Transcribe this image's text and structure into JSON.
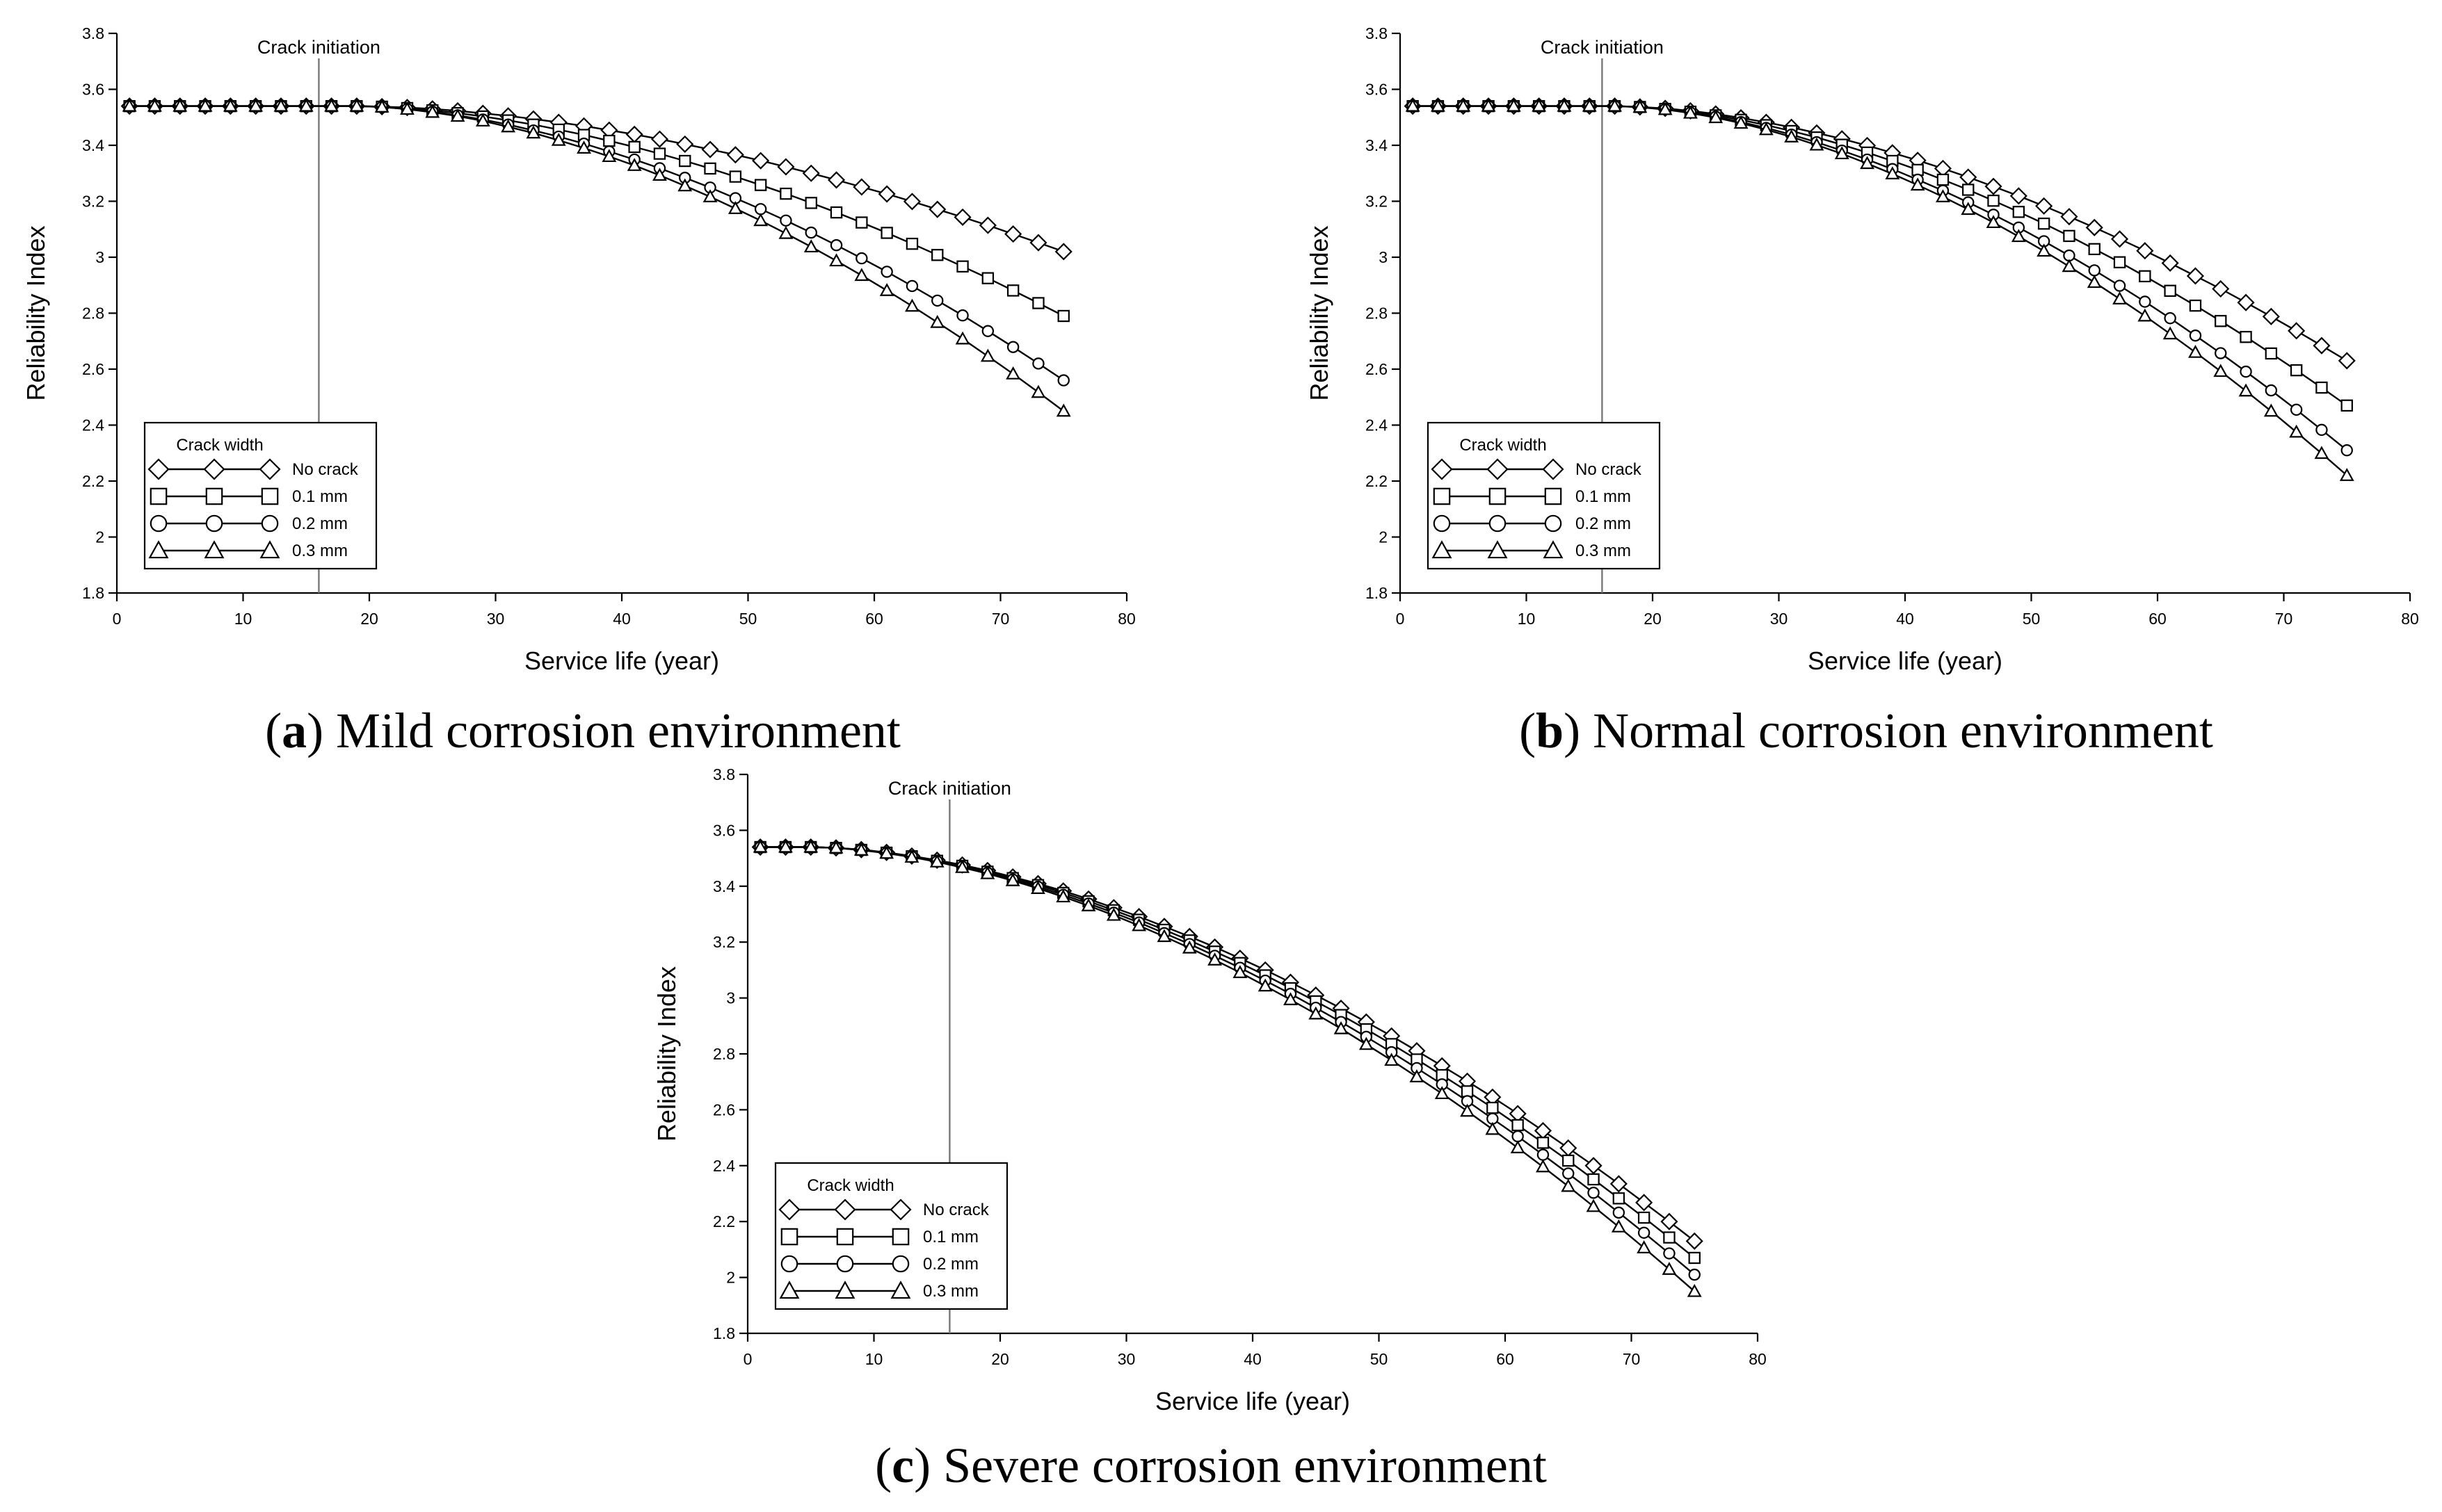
{
  "colors": {
    "line": "#000000",
    "marker_fill": "#ffffff",
    "crack_line": "#777777"
  },
  "chart_data": [
    {
      "id": "a",
      "type": "line",
      "caption_letter": "a",
      "caption_text": "Mild corrosion environment",
      "xlabel": "Service life (year)",
      "ylabel": "Reliability Index",
      "xlim": [
        0,
        80
      ],
      "ylim": [
        1.8,
        3.8
      ],
      "xticks": [
        0,
        10,
        20,
        30,
        40,
        50,
        60,
        70,
        80
      ],
      "yticks": [
        1.8,
        2,
        2.2,
        2.4,
        2.6,
        2.8,
        3,
        3.2,
        3.4,
        3.6,
        3.8
      ],
      "ytick_labels": [
        "1.8",
        "2",
        "2.2",
        "2.4",
        "2.6",
        "2.8",
        "3",
        "3.2",
        "3.4",
        "3.6",
        "3.8"
      ],
      "annotation": {
        "text": "Crack initiation",
        "x": 16
      },
      "legend": {
        "title": "Crack width",
        "position": "bottom-left"
      },
      "onset": 19,
      "series": [
        {
          "name": "No crack",
          "marker": "diamond",
          "end": 3.02
        },
        {
          "name": "0.1 mm",
          "marker": "square",
          "end": 2.79
        },
        {
          "name": "0.2 mm",
          "marker": "circle",
          "end": 2.56
        },
        {
          "name": "0.3 mm",
          "marker": "triangle",
          "end": 2.45
        }
      ]
    },
    {
      "id": "b",
      "type": "line",
      "caption_letter": "b",
      "caption_text": "Normal corrosion environment",
      "xlabel": "Service life (year)",
      "ylabel": "Reliability Index",
      "xlim": [
        0,
        80
      ],
      "ylim": [
        1.8,
        3.8
      ],
      "xticks": [
        0,
        10,
        20,
        30,
        40,
        50,
        60,
        70,
        80
      ],
      "yticks": [
        1.8,
        2,
        2.2,
        2.4,
        2.6,
        2.8,
        3,
        3.2,
        3.4,
        3.6,
        3.8
      ],
      "ytick_labels": [
        "1.8",
        "2",
        "2.2",
        "2.4",
        "2.6",
        "2.8",
        "3",
        "3.2",
        "3.4",
        "3.6",
        "3.8"
      ],
      "annotation": {
        "text": "Crack initiation",
        "x": 16
      },
      "legend": {
        "title": "Crack width",
        "position": "bottom-left"
      },
      "onset": 17,
      "series": [
        {
          "name": "No crack",
          "marker": "diamond",
          "end": 2.63
        },
        {
          "name": "0.1 mm",
          "marker": "square",
          "end": 2.47
        },
        {
          "name": "0.2 mm",
          "marker": "circle",
          "end": 2.31
        },
        {
          "name": "0.3 mm",
          "marker": "triangle",
          "end": 2.22
        }
      ]
    },
    {
      "id": "c",
      "type": "line",
      "caption_letter": "c",
      "caption_text": "Severe corrosion environment",
      "xlabel": "Service life (year)",
      "ylabel": "Reliability Index",
      "xlim": [
        0,
        80
      ],
      "ylim": [
        1.8,
        3.8
      ],
      "xticks": [
        0,
        10,
        20,
        30,
        40,
        50,
        60,
        70,
        80
      ],
      "yticks": [
        1.8,
        2,
        2.2,
        2.4,
        2.6,
        2.8,
        3,
        3.2,
        3.4,
        3.6,
        3.8
      ],
      "ytick_labels": [
        "1.8",
        "2",
        "2.2",
        "2.4",
        "2.6",
        "2.8",
        "3",
        "3.2",
        "3.4",
        "3.6",
        "3.8"
      ],
      "annotation": {
        "text": "Crack initiation",
        "x": 16
      },
      "legend": {
        "title": "Crack width",
        "position": "bottom-left"
      },
      "onset": 5,
      "series": [
        {
          "name": "No crack",
          "marker": "diamond",
          "end": 2.13
        },
        {
          "name": "0.1 mm",
          "marker": "square",
          "end": 2.07
        },
        {
          "name": "0.2 mm",
          "marker": "circle",
          "end": 2.01
        },
        {
          "name": "0.3 mm",
          "marker": "triangle",
          "end": 1.95
        }
      ]
    }
  ],
  "x_values": [
    1,
    3,
    5,
    7,
    9,
    11,
    13,
    15,
    17,
    19,
    21,
    23,
    25,
    27,
    29,
    31,
    33,
    35,
    37,
    39,
    41,
    43,
    45,
    47,
    49,
    51,
    53,
    55,
    57,
    59,
    61,
    63,
    65,
    67,
    69,
    71,
    73,
    75
  ],
  "start_value": 3.54
}
